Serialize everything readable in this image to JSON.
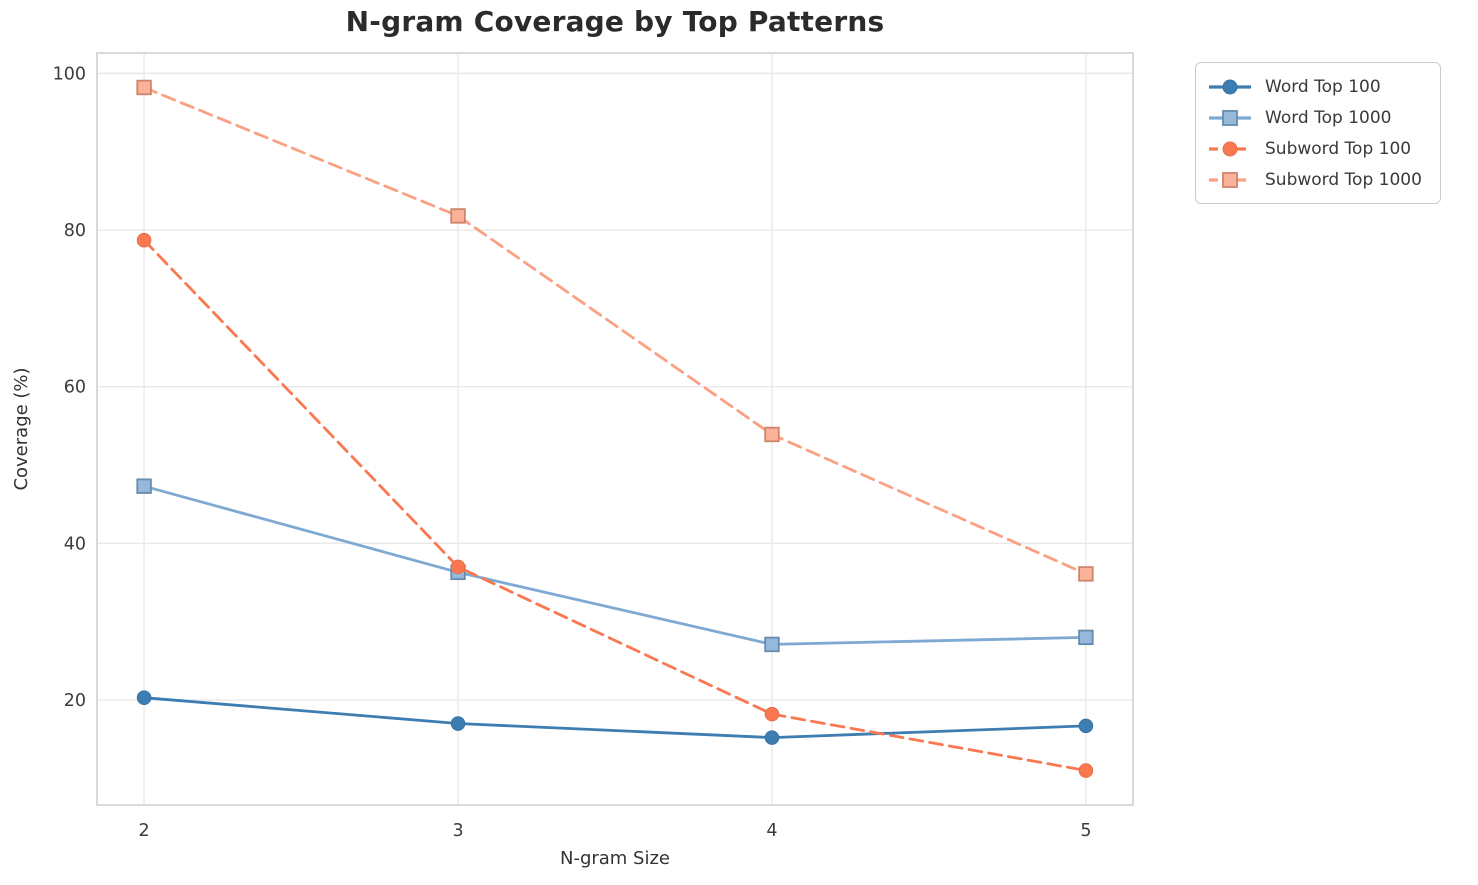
{
  "figure": {
    "title": "N-gram Coverage by Top Patterns",
    "xlabel": "N-gram Size",
    "ylabel": "Coverage (%)"
  },
  "chart_data": {
    "type": "line",
    "title": "N-gram Coverage by Top Patterns",
    "xlabel": "N-gram Size",
    "ylabel": "Coverage (%)",
    "x": [
      2,
      3,
      4,
      5
    ],
    "xtick_labels": [
      "2",
      "3",
      "4",
      "5"
    ],
    "ytick_labels": [
      "20",
      "40",
      "60",
      "80",
      "100"
    ],
    "yticks": [
      20,
      40,
      60,
      80,
      100
    ],
    "xlim": [
      1.85,
      5.15
    ],
    "ylim": [
      6.6,
      102.6
    ],
    "grid": true,
    "legend_position": "outside-upper-right",
    "series": [
      {
        "name": "Word Top 100",
        "values": [
          20.3,
          17.0,
          15.2,
          16.7
        ],
        "color": "#3d7db2",
        "marker": "circle",
        "line_style": "solid"
      },
      {
        "name": "Word Top 1000",
        "values": [
          47.3,
          36.3,
          27.1,
          28.0
        ],
        "color": "#7ea9d3",
        "marker": "square",
        "line_style": "solid"
      },
      {
        "name": "Subword Top 100",
        "values": [
          78.7,
          37.0,
          18.2,
          11.0
        ],
        "color": "#fa7850",
        "marker": "circle",
        "line_style": "dashed"
      },
      {
        "name": "Subword Top 1000",
        "values": [
          98.2,
          81.8,
          53.9,
          36.1
        ],
        "color": "#fba183",
        "marker": "square",
        "line_style": "dashed"
      }
    ]
  },
  "colors": {
    "title_text": "#2b2b2b",
    "axis_label_text": "#333333",
    "tick_text": "#3c3c3c",
    "grid_line": "#e9e9e9",
    "plot_border": "#d5d5d5",
    "legend_border": "#cbcbcb",
    "background": "#ffffff"
  }
}
